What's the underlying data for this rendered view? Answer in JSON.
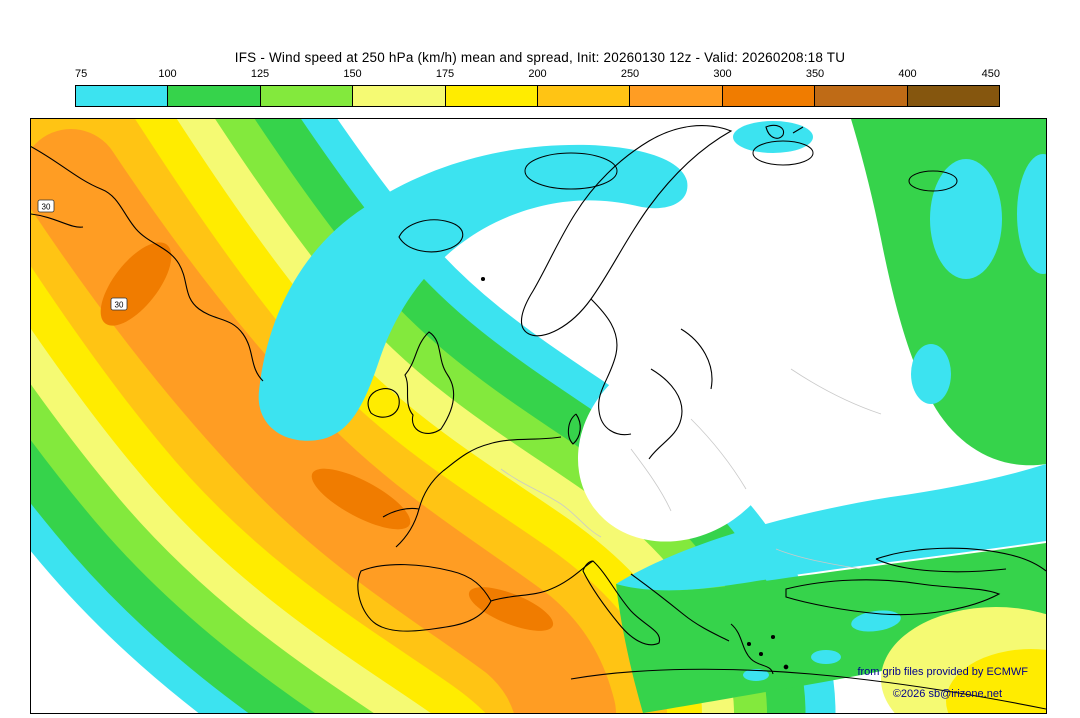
{
  "header": {
    "title": "IFS - Wind speed at 250 hPa (km/h) mean and spread, Init: 20260130 12z - Valid: 20260208:18 TU"
  },
  "colorbar": {
    "ticks": [
      "75",
      "100",
      "125",
      "150",
      "175",
      "200",
      "250",
      "300",
      "350",
      "400",
      "450"
    ],
    "segments": [
      {
        "label": "75-100",
        "color": "#3ce3f0"
      },
      {
        "label": "100-125",
        "color": "#36d34b"
      },
      {
        "label": "125-150",
        "color": "#83e93d"
      },
      {
        "label": "150-175",
        "color": "#f5fa73"
      },
      {
        "label": "175-200",
        "color": "#ffec00"
      },
      {
        "label": "200-250",
        "color": "#ffc414"
      },
      {
        "label": "250-300",
        "color": "#ff9d23"
      },
      {
        "label": "300-350",
        "color": "#f07c00"
      },
      {
        "label": "350-400",
        "color": "#bf6b16"
      },
      {
        "label": "400-450",
        "color": "#85560e"
      }
    ]
  },
  "palette": {
    "white": "#ffffff",
    "cyan": "#3ce3f0",
    "green": "#36d34b",
    "lime": "#83e93d",
    "paleyellow": "#f5fa73",
    "yellow": "#ffec00",
    "gold": "#ffc414",
    "orange": "#ff9d23",
    "darkorange": "#f07c00",
    "coast": "#000000",
    "border_gray": "#c9c9c9",
    "attribution": "#00008b"
  },
  "map": {
    "grid_labels": [
      "30",
      "30"
    ],
    "attribution_line1": "from grib files provided by ECMWF",
    "attribution_line2": "©2026 sb@irizone.net"
  },
  "chart_data": {
    "type": "heatmap",
    "title": "IFS - Wind speed at 250 hPa (km/h) mean and spread",
    "init": "20260130 12z",
    "valid": "20260208:18 TU",
    "variable": "Wind speed at 250 hPa",
    "units": "km/h",
    "legend_position": "top",
    "scale": {
      "ticks": [
        75,
        100,
        125,
        150,
        175,
        200,
        250,
        300,
        350,
        400,
        450
      ],
      "colors": [
        "#3ce3f0",
        "#36d34b",
        "#83e93d",
        "#f5fa73",
        "#ffec00",
        "#ffc414",
        "#ff9d23",
        "#f07c00",
        "#bf6b16",
        "#85560e"
      ]
    },
    "regions": [
      {
        "area": "Broad SW-NE jet band across the western/central North Atlantic toward SW Europe",
        "range_kmh": "150-300"
      },
      {
        "area": "Jet core (orange) from NE North America arcing to west of Iberia",
        "range_kmh": "250-350"
      },
      {
        "area": "Curved band over Norwegian Sea / northern Scandinavia",
        "range_kmh": "75-100"
      },
      {
        "area": "Central Scandinavia and central/eastern Europe",
        "range_kmh": "< 75"
      },
      {
        "area": "Mediterranean / Black Sea west-east band",
        "range_kmh": "75-125"
      },
      {
        "area": "Southeastern corner (eastern Mediterranean / Middle East)",
        "range_kmh": "125-200"
      },
      {
        "area": "Northeastern edge (Russia / Arctic)",
        "range_kmh": "75-125"
      }
    ]
  }
}
